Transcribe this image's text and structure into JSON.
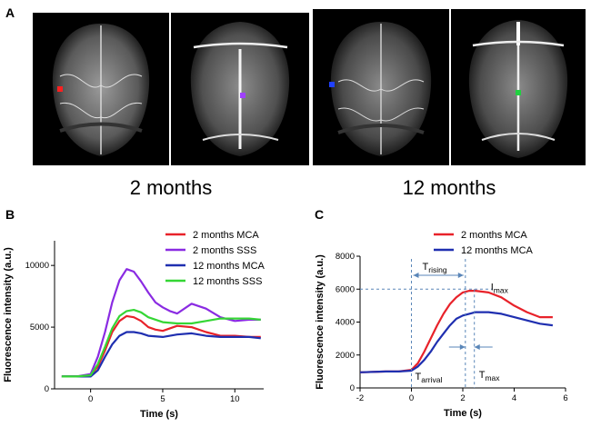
{
  "panel_a": {
    "letter": "A",
    "captions": [
      "2 months",
      "12 months"
    ],
    "roi_colors": [
      "#ff2020",
      "#a040ff",
      "#2040ff",
      "#20d040"
    ]
  },
  "chart_data": [
    {
      "panel": "B",
      "type": "line",
      "title": "",
      "xlabel": "Time (s)",
      "ylabel": "Fluorescence intensity (a.u.)",
      "xlim": [
        -2.5,
        12
      ],
      "ylim": [
        0,
        12000
      ],
      "xticks": [
        0,
        5,
        10
      ],
      "yticks": [
        0,
        5000,
        10000
      ],
      "grid": false,
      "legend": "top-right",
      "series": [
        {
          "name": "2 months MCA",
          "color": "#e8222a",
          "x": [
            -2,
            -1,
            0,
            0.5,
            1,
            1.5,
            2,
            2.5,
            3,
            3.5,
            4,
            4.5,
            5,
            6,
            7,
            8,
            9,
            10,
            11,
            11.8
          ],
          "y": [
            1000,
            1000,
            1100,
            1800,
            3100,
            4600,
            5500,
            5900,
            5800,
            5500,
            5000,
            4800,
            4700,
            5100,
            5000,
            4600,
            4300,
            4300,
            4200,
            4200
          ]
        },
        {
          "name": "2 months SSS",
          "color": "#8a2be2",
          "x": [
            -2,
            -1,
            0,
            0.5,
            1,
            1.5,
            2,
            2.5,
            3,
            3.5,
            4,
            4.5,
            5,
            5.5,
            6,
            7,
            8,
            9,
            10,
            11,
            11.8
          ],
          "y": [
            1000,
            1000,
            1200,
            2600,
            4600,
            7000,
            8800,
            9700,
            9500,
            8700,
            7800,
            7000,
            6600,
            6300,
            6100,
            6900,
            6500,
            5800,
            5500,
            5600,
            5600
          ]
        },
        {
          "name": "12 months MCA",
          "color": "#1f2fb0",
          "x": [
            -2,
            -1,
            0,
            0.5,
            1,
            1.5,
            2,
            2.5,
            3,
            3.5,
            4,
            5,
            6,
            7,
            8,
            9,
            10,
            11,
            11.8
          ],
          "y": [
            1000,
            1000,
            1000,
            1500,
            2600,
            3600,
            4300,
            4600,
            4600,
            4500,
            4300,
            4200,
            4400,
            4500,
            4300,
            4200,
            4200,
            4200,
            4100
          ]
        },
        {
          "name": "12 months SSS",
          "color": "#35d635",
          "x": [
            -2,
            -1,
            0,
            0.5,
            1,
            1.5,
            2,
            2.5,
            3,
            3.5,
            4,
            5,
            6,
            7,
            8,
            9,
            10,
            11,
            11.8
          ],
          "y": [
            1000,
            1000,
            1100,
            2000,
            3400,
            4900,
            5900,
            6300,
            6400,
            6200,
            5800,
            5400,
            5300,
            5300,
            5500,
            5700,
            5700,
            5700,
            5600
          ]
        }
      ]
    },
    {
      "panel": "C",
      "type": "line",
      "title": "",
      "xlabel": "Time (s)",
      "ylabel": "Fluorescence intensity (a.u.)",
      "xlim": [
        -2,
        6
      ],
      "ylim": [
        0,
        8000
      ],
      "xticks": [
        -2,
        0,
        2,
        4,
        6
      ],
      "yticks": [
        0,
        2000,
        4000,
        6000,
        8000
      ],
      "grid": false,
      "legend": "top-right",
      "series": [
        {
          "name": "2 months MCA",
          "color": "#e8222a",
          "x": [
            -2,
            -1,
            -0.5,
            0,
            0.25,
            0.5,
            0.75,
            1,
            1.25,
            1.5,
            1.75,
            2,
            2.25,
            2.5,
            3,
            3.5,
            4,
            4.5,
            5,
            5.5
          ],
          "y": [
            950,
            1000,
            1000,
            1100,
            1500,
            2200,
            3000,
            3800,
            4500,
            5100,
            5500,
            5800,
            5900,
            5900,
            5800,
            5500,
            5000,
            4600,
            4300,
            4300
          ]
        },
        {
          "name": "12 months MCA",
          "color": "#1f2fb0",
          "x": [
            -2,
            -1,
            -0.5,
            0,
            0.25,
            0.5,
            0.75,
            1,
            1.25,
            1.5,
            1.75,
            2,
            2.25,
            2.5,
            3,
            3.5,
            4,
            4.5,
            5,
            5.5
          ],
          "y": [
            950,
            1000,
            1000,
            1050,
            1300,
            1700,
            2200,
            2800,
            3300,
            3800,
            4200,
            4400,
            4500,
            4600,
            4600,
            4500,
            4300,
            4100,
            3900,
            3800
          ]
        }
      ],
      "annotations": {
        "t_rising": "T",
        "t_rising_sub": "rising",
        "i_max": "I",
        "i_max_sub": "max",
        "t_arrival": "T",
        "t_arrival_sub": "arrival",
        "t_max": "T",
        "t_max_sub": "max",
        "t_arrival_x": 0,
        "t_peak_x": 2.1,
        "t_peak_blue_x": 2.45,
        "i_max_y": 6000
      }
    }
  ]
}
